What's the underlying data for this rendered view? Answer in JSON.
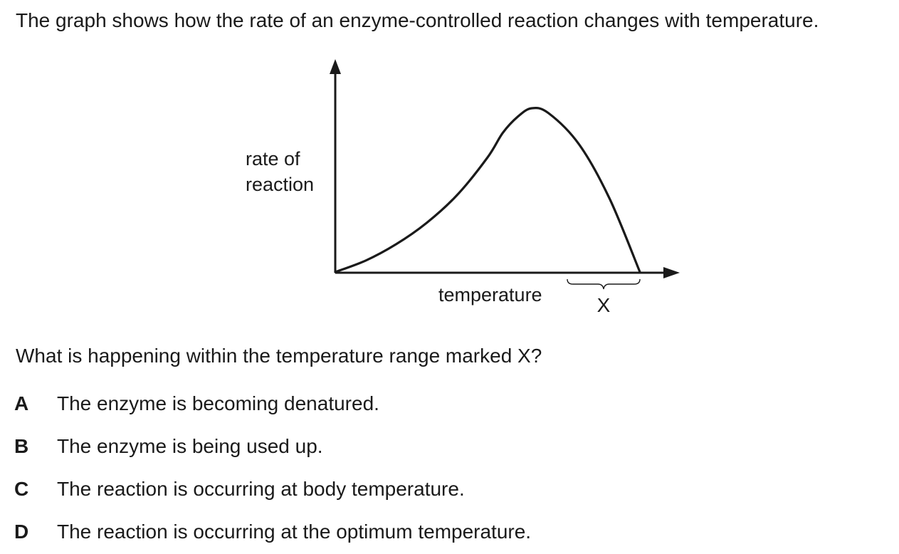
{
  "intro": "The graph shows how the rate of an enzyme-controlled reaction changes with temperature.",
  "chart_data": {
    "type": "line",
    "ylabel_line1": "rate of",
    "ylabel_line2": "reaction",
    "xlabel": "temperature",
    "range_label": "X",
    "x": [
      0,
      0.1,
      0.2,
      0.3,
      0.4,
      0.5,
      0.55,
      0.6,
      0.645,
      0.7,
      0.8,
      0.9,
      1.0
    ],
    "y": [
      0,
      0.07,
      0.17,
      0.3,
      0.47,
      0.7,
      0.85,
      0.95,
      1.0,
      0.97,
      0.78,
      0.45,
      0
    ],
    "grid": false,
    "legend": "none"
  },
  "question": "What is happening within the temperature range marked X?",
  "options": [
    {
      "letter": "A",
      "text": "The enzyme is becoming denatured."
    },
    {
      "letter": "B",
      "text": "The enzyme is being used up."
    },
    {
      "letter": "C",
      "text": "The reaction is occurring at body temperature."
    },
    {
      "letter": "D",
      "text": "The reaction is occurring at the optimum temperature."
    }
  ]
}
